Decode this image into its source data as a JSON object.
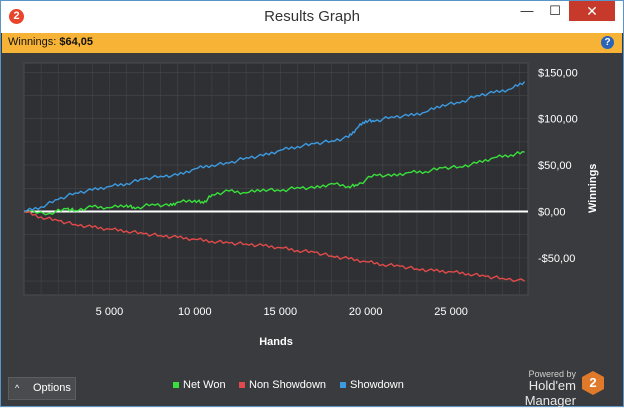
{
  "window": {
    "title": "Results Graph",
    "app_icon_text": "2",
    "min_label": "—",
    "max_label": "☐",
    "close_label": "✕"
  },
  "summary": {
    "label": "Winnings:",
    "value": "$64,05",
    "help_icon_text": "?"
  },
  "footer": {
    "options_label": "Options",
    "options_chevron": "^",
    "powered_by": "Powered by",
    "brand": "Hold'em Manager",
    "brand_logo_text": "2"
  },
  "colors": {
    "net_won": "#39e03b",
    "non_showdown": "#e04a4a",
    "showdown": "#3c9ae0",
    "zero_line": "#ffffff",
    "background": "#3a3b3e",
    "summary_bar": "#f7b335"
  },
  "chart_data": {
    "type": "line",
    "xlabel": "Hands",
    "ylabel": "Winnings",
    "xlim": [
      0,
      29500
    ],
    "ylim": [
      -90,
      160
    ],
    "x_ticks": [
      5000,
      10000,
      15000,
      20000,
      25000
    ],
    "x_tick_labels": [
      "5 000",
      "10 000",
      "15 000",
      "20 000",
      "25 000"
    ],
    "y_ticks": [
      150,
      100,
      50,
      0,
      -50
    ],
    "y_tick_labels": [
      "$150,00",
      "$100,00",
      "$50,00",
      "$0,00",
      "-$50,00"
    ],
    "grid": true,
    "legend_position": "bottom",
    "zero_line": 0,
    "series": [
      {
        "name": "Net Won",
        "color": "#39e03b",
        "x": [
          0,
          1500,
          2500,
          3000,
          4000,
          5000,
          6000,
          6500,
          7500,
          8500,
          9000,
          10000,
          10500,
          11000,
          12000,
          13000,
          14000,
          15000,
          16000,
          17000,
          18000,
          19000,
          19500,
          20500,
          21500,
          22500,
          23500,
          24500,
          25500,
          26500,
          27500,
          28500,
          29300
        ],
        "y": [
          0,
          -2,
          3,
          1,
          5,
          4,
          7,
          3,
          8,
          6,
          10,
          12,
          9,
          18,
          22,
          20,
          24,
          22,
          26,
          25,
          30,
          27,
          28,
          40,
          38,
          42,
          43,
          47,
          48,
          52,
          58,
          61,
          64
        ]
      },
      {
        "name": "Non Showdown",
        "color": "#e04a4a",
        "x": [
          0,
          1000,
          2000,
          3000,
          4000,
          5000,
          6000,
          7000,
          8000,
          9000,
          10000,
          11000,
          12000,
          13000,
          14000,
          15000,
          16000,
          17000,
          18000,
          19000,
          20000,
          21000,
          22000,
          23000,
          24000,
          25000,
          26000,
          27000,
          28000,
          29300
        ],
        "y": [
          0,
          -6,
          -10,
          -14,
          -17,
          -19,
          -21,
          -24,
          -26,
          -28,
          -30,
          -32,
          -34,
          -35,
          -37,
          -39,
          -42,
          -44,
          -48,
          -51,
          -54,
          -57,
          -59,
          -62,
          -64,
          -65,
          -67,
          -70,
          -72,
          -75
        ]
      },
      {
        "name": "Showdown",
        "color": "#3c9ae0",
        "x": [
          0,
          1000,
          2000,
          3000,
          4000,
          5000,
          6000,
          7000,
          8000,
          9000,
          10000,
          11000,
          12000,
          13000,
          14000,
          15000,
          16000,
          17000,
          18000,
          19000,
          19500,
          20000,
          20500,
          21500,
          22500,
          23500,
          24500,
          25500,
          26500,
          27500,
          28500,
          29300
        ],
        "y": [
          0,
          5,
          13,
          20,
          23,
          27,
          30,
          35,
          38,
          39,
          46,
          50,
          52,
          58,
          60,
          66,
          70,
          73,
          76,
          80,
          90,
          98,
          97,
          102,
          103,
          107,
          115,
          117,
          125,
          128,
          132,
          140
        ]
      }
    ]
  }
}
